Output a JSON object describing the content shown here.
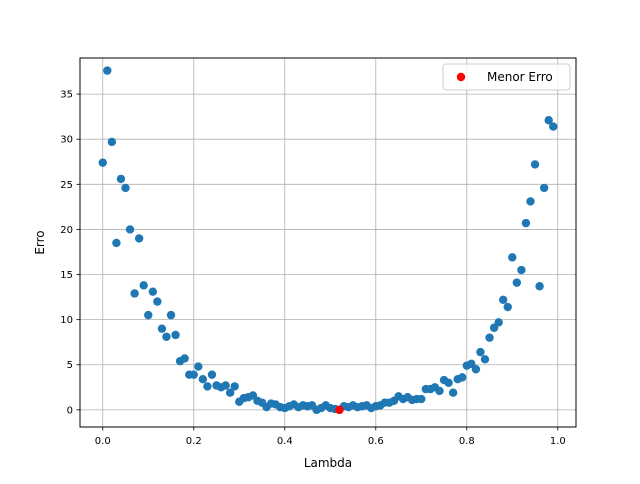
{
  "chart_data": {
    "type": "scatter",
    "title": "",
    "xlabel": "Lambda",
    "ylabel": "Erro",
    "xlim": [
      -0.05,
      1.04
    ],
    "ylim": [
      -1.9,
      39.0
    ],
    "xticks": [
      0.0,
      0.2,
      0.4,
      0.6,
      0.8,
      1.0
    ],
    "xtick_labels": [
      "0.0",
      "0.2",
      "0.4",
      "0.6",
      "0.8",
      "1.0"
    ],
    "yticks": [
      0,
      5,
      10,
      15,
      20,
      25,
      30,
      35
    ],
    "ytick_labels": [
      "0",
      "5",
      "10",
      "15",
      "20",
      "25",
      "30",
      "35"
    ],
    "grid": true,
    "legend_placement": "top-right",
    "colors": {
      "points": "#1f77b4",
      "highlight": "#ff0000",
      "grid": "#b0b0b0"
    },
    "series": [
      {
        "x": [
          0.0,
          0.01,
          0.02,
          0.03,
          0.04,
          0.05,
          0.06,
          0.07,
          0.08,
          0.09,
          0.1,
          0.11,
          0.12,
          0.13,
          0.14,
          0.15,
          0.16,
          0.17,
          0.18,
          0.19,
          0.2,
          0.21,
          0.22,
          0.23,
          0.24,
          0.25,
          0.26,
          0.27,
          0.28,
          0.29,
          0.3,
          0.31,
          0.32,
          0.33,
          0.34,
          0.35,
          0.36,
          0.37,
          0.38,
          0.39,
          0.4,
          0.41,
          0.42,
          0.43,
          0.44,
          0.45,
          0.46,
          0.47,
          0.48,
          0.49,
          0.5,
          0.51,
          0.52,
          0.53,
          0.54,
          0.55,
          0.56,
          0.57,
          0.58,
          0.59,
          0.6,
          0.61,
          0.62,
          0.63,
          0.64,
          0.65,
          0.66,
          0.67,
          0.68,
          0.69,
          0.7,
          0.71,
          0.72,
          0.73,
          0.74,
          0.75,
          0.76,
          0.77,
          0.78,
          0.79,
          0.8,
          0.81,
          0.82,
          0.83,
          0.84,
          0.85,
          0.86,
          0.87,
          0.88,
          0.89,
          0.9,
          0.91,
          0.92,
          0.93,
          0.94,
          0.95,
          0.96,
          0.97,
          0.98,
          0.99
        ],
        "y": [
          27.4,
          37.6,
          29.7,
          18.5,
          25.6,
          24.6,
          20.0,
          12.9,
          19.0,
          13.8,
          10.5,
          13.1,
          12.0,
          9.0,
          8.1,
          10.5,
          8.3,
          5.4,
          5.7,
          3.9,
          3.9,
          4.8,
          3.4,
          2.6,
          3.9,
          2.7,
          2.5,
          2.7,
          1.9,
          2.6,
          0.9,
          1.3,
          1.4,
          1.6,
          1.0,
          0.8,
          0.3,
          0.7,
          0.6,
          0.3,
          0.2,
          0.4,
          0.6,
          0.3,
          0.5,
          0.4,
          0.5,
          0.0,
          0.2,
          0.5,
          0.2,
          0.1,
          0.0,
          0.4,
          0.3,
          0.5,
          0.3,
          0.4,
          0.5,
          0.2,
          0.4,
          0.5,
          0.8,
          0.8,
          1.0,
          1.5,
          1.2,
          1.4,
          1.1,
          1.2,
          1.2,
          2.3,
          2.3,
          2.5,
          2.1,
          3.3,
          3.0,
          1.9,
          3.4,
          3.6,
          4.9,
          5.1,
          4.5,
          6.4,
          5.6,
          8.0,
          9.1,
          9.7,
          12.2,
          11.4,
          16.9,
          14.1,
          15.5,
          20.7,
          23.1,
          27.2,
          13.7,
          24.6,
          32.1,
          31.4
        ]
      },
      {
        "name": "Menor Erro",
        "x": [
          0.52
        ],
        "y": [
          0.0
        ]
      }
    ]
  }
}
